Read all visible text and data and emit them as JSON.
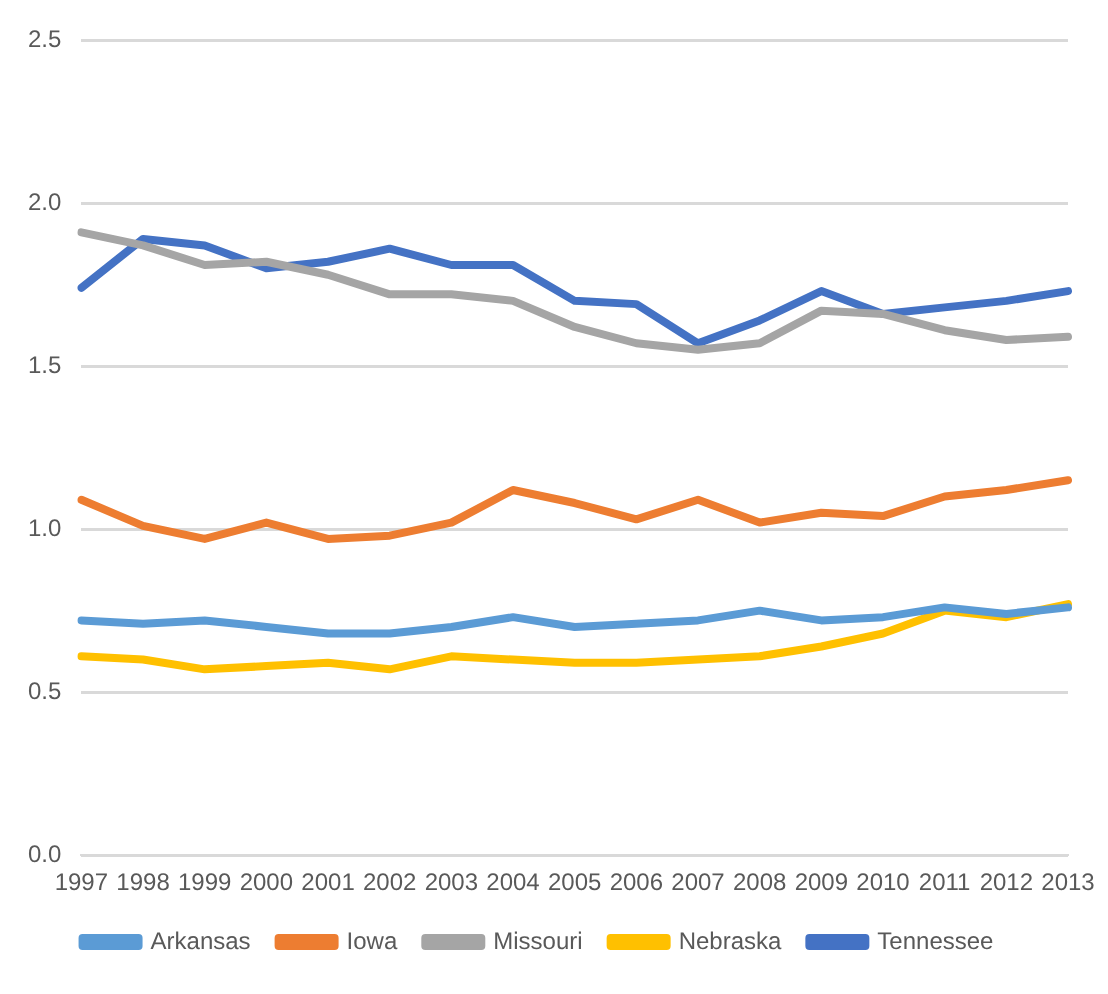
{
  "chart_data": {
    "type": "line",
    "categories": [
      "1997",
      "1998",
      "1999",
      "2000",
      "2001",
      "2002",
      "2003",
      "2004",
      "2005",
      "2006",
      "2007",
      "2008",
      "2009",
      "2010",
      "2011",
      "2012",
      "2013"
    ],
    "series": [
      {
        "name": "Arkansas",
        "color": "#5b9bd5",
        "values": [
          0.72,
          0.71,
          0.72,
          0.7,
          0.68,
          0.68,
          0.7,
          0.73,
          0.7,
          0.71,
          0.72,
          0.75,
          0.72,
          0.73,
          0.76,
          0.74,
          0.76
        ]
      },
      {
        "name": "Iowa",
        "color": "#ed7d31",
        "values": [
          1.09,
          1.01,
          0.97,
          1.02,
          0.97,
          0.98,
          1.02,
          1.12,
          1.08,
          1.03,
          1.09,
          1.02,
          1.05,
          1.04,
          1.1,
          1.12,
          1.15
        ]
      },
      {
        "name": "Missouri",
        "color": "#a5a5a5",
        "values": [
          1.91,
          1.87,
          1.81,
          1.82,
          1.78,
          1.72,
          1.72,
          1.7,
          1.62,
          1.57,
          1.55,
          1.57,
          1.67,
          1.66,
          1.61,
          1.58,
          1.59
        ]
      },
      {
        "name": "Nebraska",
        "color": "#ffc000",
        "values": [
          0.61,
          0.6,
          0.57,
          0.58,
          0.59,
          0.57,
          0.61,
          0.6,
          0.59,
          0.59,
          0.6,
          0.61,
          0.64,
          0.68,
          0.75,
          0.73,
          0.77
        ]
      },
      {
        "name": "Tennessee",
        "color": "#4472c4",
        "values": [
          1.74,
          1.89,
          1.87,
          1.8,
          1.82,
          1.86,
          1.81,
          1.81,
          1.7,
          1.69,
          1.57,
          1.64,
          1.73,
          1.66,
          1.68,
          1.7,
          1.73
        ]
      }
    ],
    "ylim": [
      0,
      2.5
    ],
    "yticks": [
      {
        "value": 0,
        "label": "0.0"
      },
      {
        "value": 0.5,
        "label": "0.5"
      },
      {
        "value": 1,
        "label": "1.0"
      },
      {
        "value": 1.5,
        "label": "1.5"
      },
      {
        "value": 2,
        "label": "2.0"
      },
      {
        "value": 2.5,
        "label": "2.5"
      }
    ],
    "grid": "y",
    "legend": "bottom",
    "marker": "none",
    "line_style": "solid"
  }
}
